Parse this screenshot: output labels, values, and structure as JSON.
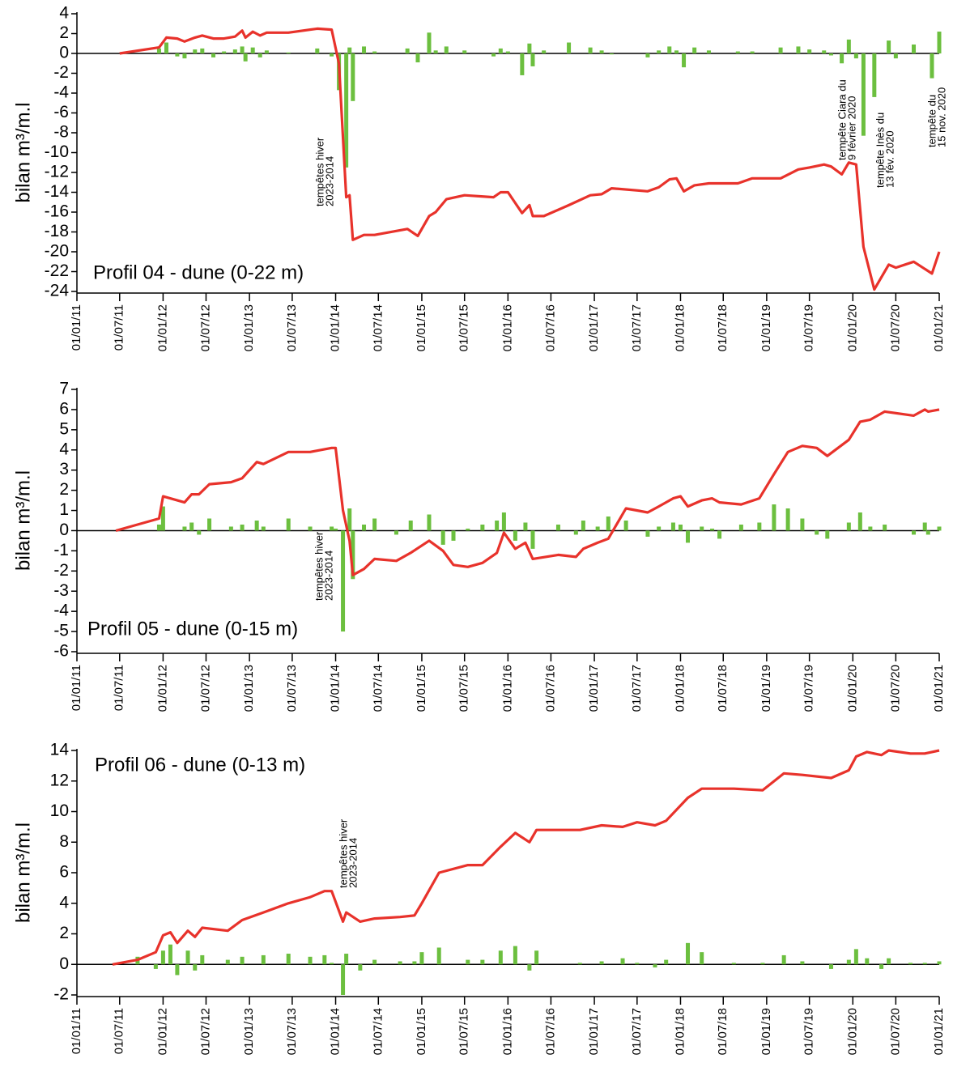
{
  "chart_data": [
    {
      "type": "line",
      "title": "Profil 04 - dune (0-22 m)",
      "ylabel": "bilan m³/m.l",
      "x": [
        "2011-07-01",
        "2011-12-15",
        "2012-01-15",
        "2012-03-01",
        "2012-04-01",
        "2012-05-15",
        "2012-06-15",
        "2012-08-01",
        "2012-09-15",
        "2012-11-01",
        "2012-12-01",
        "2012-12-15",
        "2013-01-15",
        "2013-02-15",
        "2013-03-15",
        "2013-06-15",
        "2013-10-15",
        "2013-12-15",
        "2014-01-15",
        "2014-02-15",
        "2014-03-01",
        "2014-03-15",
        "2014-05-01",
        "2014-06-15",
        "2014-11-01",
        "2014-12-15",
        "2015-02-01",
        "2015-03-01",
        "2015-04-15",
        "2015-07-01",
        "2015-11-01",
        "2015-12-01",
        "2016-01-01",
        "2016-03-01",
        "2016-04-01",
        "2016-04-15",
        "2016-06-01",
        "2016-09-15",
        "2016-12-15",
        "2017-02-01",
        "2017-03-15",
        "2017-08-15",
        "2017-10-01",
        "2017-11-15",
        "2017-12-15",
        "2018-01-15",
        "2018-03-01",
        "2018-05-01",
        "2018-09-01",
        "2018-11-01",
        "2019-03-01",
        "2019-05-15",
        "2019-07-01",
        "2019-09-01",
        "2019-10-01",
        "2019-11-15",
        "2019-12-15",
        "2020-01-15",
        "2020-02-15",
        "2020-04-01",
        "2020-06-01",
        "2020-07-01",
        "2020-09-15",
        "2020-12-01",
        "2021-01-01"
      ],
      "series": [
        {
          "type": "bar",
          "color": "#6cbf3f",
          "values": [
            null,
            0.5,
            1.1,
            -0.3,
            -0.5,
            0.4,
            0.5,
            -0.4,
            0.2,
            0.4,
            0.7,
            -0.8,
            0.6,
            -0.4,
            0.3,
            0.1,
            0.5,
            -0.3,
            -3.7,
            -11.5,
            0.6,
            -4.8,
            0.7,
            0.2,
            0.5,
            -0.9,
            2.1,
            0.3,
            0.7,
            0.3,
            -0.3,
            0.5,
            0.2,
            -2.2,
            1.0,
            -1.3,
            0.3,
            1.1,
            0.6,
            0.3,
            -0.1,
            -0.4,
            0.3,
            0.7,
            0.3,
            -1.4,
            0.6,
            0.3,
            0.2,
            0.2,
            0.6,
            0.7,
            0.4,
            0.3,
            -0.2,
            -1.0,
            1.4,
            -0.5,
            -8.3,
            -4.4,
            1.3,
            -0.5,
            0.9,
            -2.5,
            2.2
          ]
        },
        {
          "color": "#e8322b",
          "values": [
            0,
            0.6,
            1.6,
            1.5,
            1.2,
            1.6,
            1.8,
            1.5,
            1.5,
            1.7,
            2.3,
            1.6,
            2.2,
            1.8,
            2.1,
            2.1,
            2.5,
            2.4,
            -1,
            -14.5,
            -14.3,
            -18.8,
            -18.3,
            -18.3,
            -17.7,
            -18.4,
            -16.4,
            -16,
            -14.7,
            -14.3,
            -14.5,
            -14,
            -14,
            -16.1,
            -15.3,
            -16.4,
            -16.4,
            -15.3,
            -14.3,
            -14.2,
            -13.6,
            -13.9,
            -13.5,
            -12.7,
            -12.6,
            -13.9,
            -13.3,
            -13.1,
            -13.1,
            -12.6,
            -12.6,
            -11.7,
            -11.5,
            -11.2,
            -11.4,
            -12.2,
            -11,
            -11.2,
            -19.5,
            -23.8,
            -21.3,
            -21.6,
            -21,
            -22.2,
            -20
          ]
        }
      ],
      "xlim": [
        "2011-01-01",
        "2021-01-01"
      ],
      "ylim": [
        -24,
        4
      ],
      "yticks": [
        4,
        2,
        0,
        -2,
        -4,
        -6,
        -8,
        -10,
        -12,
        -14,
        -16,
        -18,
        -20,
        -22,
        -24
      ],
      "xticks": [
        {
          "value": "2011-01-01",
          "label": "01/01/11"
        },
        {
          "value": "2011-07-01",
          "label": "01/07/11"
        },
        {
          "value": "2012-01-01",
          "label": "01/01/12"
        },
        {
          "value": "2012-07-01",
          "label": "01/07/12"
        },
        {
          "value": "2013-01-01",
          "label": "01/01/13"
        },
        {
          "value": "2013-07-01",
          "label": "01/07/13"
        },
        {
          "value": "2014-01-01",
          "label": "01/01/14"
        },
        {
          "value": "2014-07-01",
          "label": "01/07/14"
        },
        {
          "value": "2015-01-01",
          "label": "01/01/15"
        },
        {
          "value": "2015-07-01",
          "label": "01/07/15"
        },
        {
          "value": "2016-01-01",
          "label": "01/01/16"
        },
        {
          "value": "2016-07-01",
          "label": "01/07/16"
        },
        {
          "value": "2017-01-01",
          "label": "01/01/17"
        },
        {
          "value": "2017-07-01",
          "label": "01/07/17"
        },
        {
          "value": "2018-01-01",
          "label": "01/01/18"
        },
        {
          "value": "2018-07-01",
          "label": "01/07/18"
        },
        {
          "value": "2019-01-01",
          "label": "01/01/19"
        },
        {
          "value": "2019-07-01",
          "label": "01/07/19"
        },
        {
          "value": "2020-01-01",
          "label": "01/01/20"
        },
        {
          "value": "2020-07-01",
          "label": "01/07/20"
        },
        {
          "value": "2021-01-01",
          "label": "01/01/21"
        }
      ],
      "annotations": [
        {
          "lines": [
            "tempêtes hiver",
            "2023-2014"
          ]
        },
        {
          "lines": [
            "tempête Ciara du",
            "9 février 2020"
          ]
        },
        {
          "lines": [
            "tempête Inès du",
            "13 fév. 2020"
          ]
        },
        {
          "lines": [
            "tempête du",
            "15 nov. 2020"
          ]
        }
      ]
    },
    {
      "type": "line",
      "title": "Profil 05 - dune (0-15 m)",
      "ylabel": "bilan m³/m.l",
      "x": [
        "2011-06-15",
        "2011-12-15",
        "2012-01-01",
        "2012-04-01",
        "2012-05-01",
        "2012-06-01",
        "2012-07-15",
        "2012-10-15",
        "2012-12-01",
        "2013-02-01",
        "2013-03-01",
        "2013-06-15",
        "2013-09-15",
        "2013-12-15",
        "2014-01-01",
        "2014-02-01",
        "2014-03-01",
        "2014-03-15",
        "2014-05-01",
        "2014-06-15",
        "2014-09-15",
        "2014-11-15",
        "2015-02-01",
        "2015-04-01",
        "2015-05-15",
        "2015-07-15",
        "2015-09-15",
        "2015-11-15",
        "2015-12-15",
        "2016-02-01",
        "2016-03-15",
        "2016-04-15",
        "2016-08-01",
        "2016-10-15",
        "2016-11-15",
        "2017-01-15",
        "2017-03-01",
        "2017-05-15",
        "2017-08-15",
        "2017-10-01",
        "2017-12-01",
        "2018-01-01",
        "2018-02-01",
        "2018-04-01",
        "2018-05-15",
        "2018-06-15",
        "2018-09-15",
        "2018-12-01",
        "2019-02-01",
        "2019-04-01",
        "2019-06-01",
        "2019-08-01",
        "2019-09-15",
        "2019-12-15",
        "2020-02-01",
        "2020-03-15",
        "2020-05-15",
        "2020-09-15",
        "2020-11-01",
        "2020-11-15",
        "2021-01-01"
      ],
      "series": [
        {
          "type": "bar",
          "color": "#6cbf3f",
          "values": [
            null,
            0.3,
            1.2,
            0.2,
            0.4,
            -0.2,
            0.6,
            0.2,
            0.3,
            0.5,
            0.2,
            0.6,
            0.2,
            0.2,
            0.1,
            -5.0,
            1.1,
            -2.4,
            0.3,
            0.6,
            -0.2,
            0.5,
            0.8,
            -0.7,
            -0.5,
            0.1,
            0.3,
            0.5,
            0.9,
            -0.5,
            0.4,
            -0.9,
            0.3,
            -0.2,
            0.5,
            0.2,
            0.7,
            0.5,
            -0.3,
            0.2,
            0.4,
            0.3,
            -0.6,
            0.2,
            0.1,
            -0.4,
            0.3,
            0.4,
            1.3,
            1.1,
            0.6,
            -0.2,
            -0.4,
            0.4,
            0.9,
            0.2,
            0.3,
            -0.2,
            0.4,
            -0.2,
            0.2
          ]
        },
        {
          "color": "#e8322b",
          "values": [
            0,
            0.6,
            1.7,
            1.4,
            1.8,
            1.8,
            2.3,
            2.4,
            2.6,
            3.4,
            3.3,
            3.9,
            3.9,
            4.1,
            4.1,
            1.0,
            -0.5,
            -2.2,
            -1.9,
            -1.4,
            -1.5,
            -1.1,
            -0.5,
            -1.0,
            -1.7,
            -1.8,
            -1.6,
            -1.1,
            -0.1,
            -0.9,
            -0.6,
            -1.4,
            -1.2,
            -1.3,
            -0.9,
            -0.6,
            -0.4,
            1.1,
            0.9,
            1.2,
            1.6,
            1.7,
            1.2,
            1.5,
            1.6,
            1.4,
            1.3,
            1.6,
            2.8,
            3.9,
            4.2,
            4.1,
            3.7,
            4.5,
            5.4,
            5.5,
            5.9,
            5.7,
            6.0,
            5.9,
            6.0
          ]
        }
      ],
      "xlim": [
        "2011-01-01",
        "2021-01-01"
      ],
      "ylim": [
        -6,
        7
      ],
      "yticks": [
        7,
        6,
        5,
        4,
        3,
        2,
        1,
        0,
        -1,
        -2,
        -3,
        -4,
        -5,
        -6
      ],
      "xticks": [
        {
          "value": "2011-01-01",
          "label": "01/01/11"
        },
        {
          "value": "2011-07-01",
          "label": "01/07/11"
        },
        {
          "value": "2012-01-01",
          "label": "01/01/12"
        },
        {
          "value": "2012-07-01",
          "label": "01/07/12"
        },
        {
          "value": "2013-01-01",
          "label": "01/01/13"
        },
        {
          "value": "2013-07-01",
          "label": "01/07/13"
        },
        {
          "value": "2014-01-01",
          "label": "01/01/14"
        },
        {
          "value": "2014-07-01",
          "label": "01/07/14"
        },
        {
          "value": "2015-01-01",
          "label": "01/01/15"
        },
        {
          "value": "2015-07-01",
          "label": "01/07/15"
        },
        {
          "value": "2016-01-01",
          "label": "01/01/16"
        },
        {
          "value": "2016-07-01",
          "label": "01/07/16"
        },
        {
          "value": "2017-01-01",
          "label": "01/01/17"
        },
        {
          "value": "2017-07-01",
          "label": "01/07/17"
        },
        {
          "value": "2018-01-01",
          "label": "01/01/18"
        },
        {
          "value": "2018-07-01",
          "label": "01/07/18"
        },
        {
          "value": "2019-01-01",
          "label": "01/01/19"
        },
        {
          "value": "2019-07-01",
          "label": "01/07/19"
        },
        {
          "value": "2020-01-01",
          "label": "01/01/20"
        },
        {
          "value": "2020-07-01",
          "label": "01/07/20"
        },
        {
          "value": "2021-01-01",
          "label": "01/01/21"
        }
      ],
      "annotations": [
        {
          "lines": [
            "tempêtes hiver",
            "2023-2014"
          ]
        }
      ]
    },
    {
      "type": "line",
      "title": "Profil 06 - dune (0-13 m)",
      "ylabel": "bilan m³/m.l",
      "x": [
        "2011-06-01",
        "2011-09-15",
        "2011-12-01",
        "2012-01-01",
        "2012-02-01",
        "2012-03-01",
        "2012-04-15",
        "2012-05-15",
        "2012-06-15",
        "2012-10-01",
        "2012-12-01",
        "2013-03-01",
        "2013-06-15",
        "2013-09-15",
        "2013-11-15",
        "2013-12-15",
        "2014-02-01",
        "2014-02-15",
        "2014-04-15",
        "2014-06-15",
        "2014-10-01",
        "2014-12-01",
        "2015-01-01",
        "2015-03-15",
        "2015-07-15",
        "2015-09-15",
        "2015-12-01",
        "2016-02-01",
        "2016-04-01",
        "2016-05-01",
        "2016-11-01",
        "2017-02-01",
        "2017-05-01",
        "2017-07-01",
        "2017-09-15",
        "2017-11-01",
        "2018-02-01",
        "2018-04-01",
        "2018-08-15",
        "2018-12-15",
        "2019-03-15",
        "2019-06-01",
        "2019-10-01",
        "2019-12-15",
        "2020-01-15",
        "2020-03-01",
        "2020-05-01",
        "2020-06-01",
        "2020-09-01",
        "2020-11-01",
        "2021-01-01"
      ],
      "series": [
        {
          "type": "bar",
          "color": "#6cbf3f",
          "values": [
            null,
            0.5,
            -0.3,
            0.9,
            1.3,
            -0.7,
            0.9,
            -0.4,
            0.6,
            0.3,
            0.5,
            0.6,
            0.7,
            0.5,
            0.6,
            0.1,
            -2.0,
            0.7,
            -0.4,
            0.3,
            0.2,
            0.2,
            0.8,
            1.1,
            0.3,
            0.3,
            0.9,
            1.2,
            -0.4,
            0.9,
            0.1,
            0.2,
            0.4,
            0.1,
            -0.2,
            0.3,
            1.4,
            0.8,
            0.1,
            0.1,
            0.6,
            0.2,
            -0.3,
            0.3,
            1.0,
            0.4,
            -0.3,
            0.4,
            0.1,
            0.1,
            0.2
          ]
        },
        {
          "color": "#e8322b",
          "values": [
            0,
            0.3,
            0.8,
            1.9,
            2.1,
            1.4,
            2.2,
            1.8,
            2.4,
            2.2,
            2.9,
            3.4,
            4.0,
            4.4,
            4.8,
            4.8,
            2.8,
            3.4,
            2.8,
            3.0,
            3.1,
            3.2,
            4.0,
            6.0,
            6.5,
            6.5,
            7.7,
            8.6,
            8.0,
            8.8,
            8.8,
            9.1,
            9.0,
            9.3,
            9.1,
            9.4,
            10.9,
            11.5,
            11.5,
            11.4,
            12.5,
            12.4,
            12.2,
            12.7,
            13.6,
            13.9,
            13.7,
            14.0,
            13.8,
            13.8,
            14.0
          ]
        }
      ],
      "xlim": [
        "2011-01-01",
        "2021-01-01"
      ],
      "ylim": [
        -2,
        14
      ],
      "yticks": [
        14,
        12,
        10,
        8,
        6,
        4,
        2,
        0,
        -2
      ],
      "xticks": [
        {
          "value": "2011-01-01",
          "label": "01/01/11"
        },
        {
          "value": "2011-07-01",
          "label": "01/07/11"
        },
        {
          "value": "2012-01-01",
          "label": "01/01/12"
        },
        {
          "value": "2012-07-01",
          "label": "01/07/12"
        },
        {
          "value": "2013-01-01",
          "label": "01/01/13"
        },
        {
          "value": "2013-07-01",
          "label": "01/07/13"
        },
        {
          "value": "2014-01-01",
          "label": "01/01/14"
        },
        {
          "value": "2014-07-01",
          "label": "01/07/14"
        },
        {
          "value": "2015-01-01",
          "label": "01/01/15"
        },
        {
          "value": "2015-07-01",
          "label": "01/07/15"
        },
        {
          "value": "2016-01-01",
          "label": "01/01/16"
        },
        {
          "value": "2016-07-01",
          "label": "01/07/16"
        },
        {
          "value": "2017-01-01",
          "label": "01/01/17"
        },
        {
          "value": "2017-07-01",
          "label": "01/07/17"
        },
        {
          "value": "2018-01-01",
          "label": "01/01/18"
        },
        {
          "value": "2018-07-01",
          "label": "01/07/18"
        },
        {
          "value": "2019-01-01",
          "label": "01/01/19"
        },
        {
          "value": "2019-07-01",
          "label": "01/07/19"
        },
        {
          "value": "2020-01-01",
          "label": "01/01/20"
        },
        {
          "value": "2020-07-01",
          "label": "01/07/20"
        },
        {
          "value": "2021-01-01",
          "label": "01/01/21"
        }
      ],
      "annotations": [
        {
          "lines": [
            "tempêtes hiver",
            "2023-2014"
          ]
        }
      ]
    }
  ]
}
